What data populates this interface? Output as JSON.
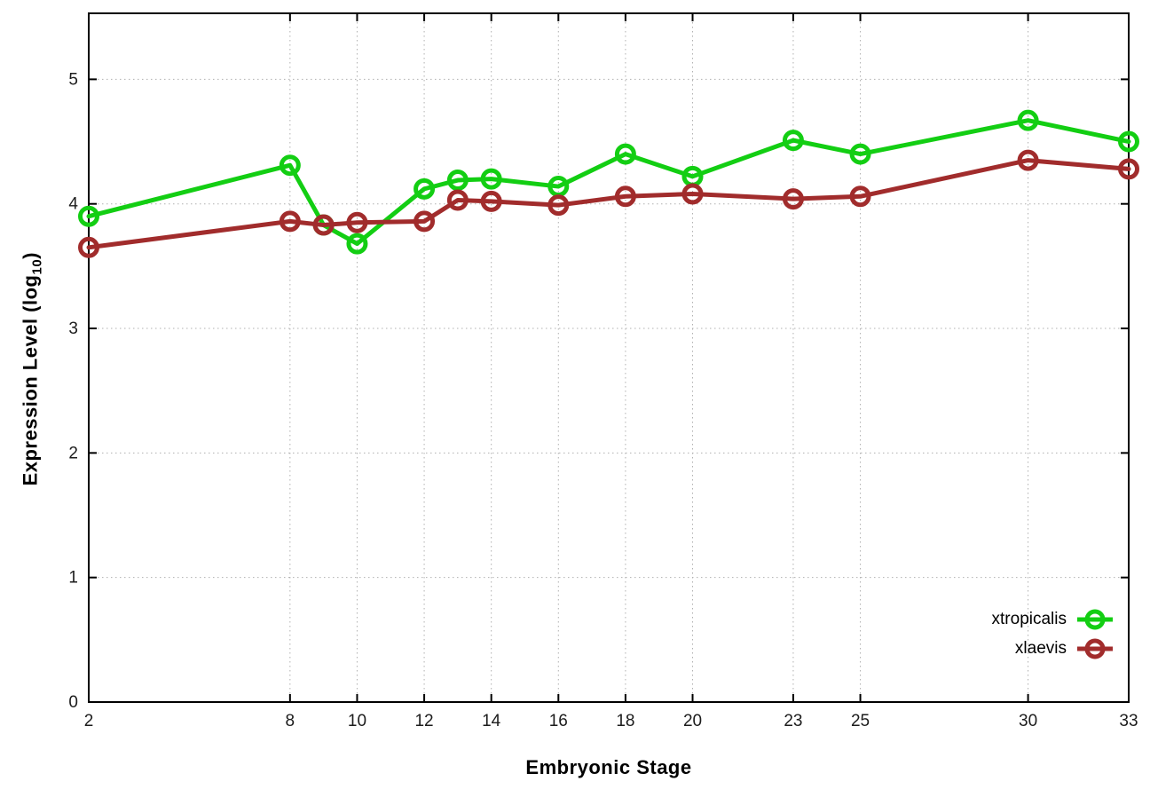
{
  "chart_data": {
    "type": "line",
    "title": "",
    "xlabel": "Embryonic Stage",
    "ylabel": "Expression Level (log10)",
    "ylabel_parts": {
      "main": "Expression Level (log",
      "sub": "10",
      "end": ")"
    },
    "x": [
      2,
      8,
      9,
      10,
      12,
      13,
      14,
      16,
      18,
      20,
      23,
      25,
      30,
      33
    ],
    "x_tick_labels": [
      "2",
      "8",
      "10",
      "12",
      "14",
      "16",
      "18",
      "20",
      "23",
      "25",
      "30",
      "33"
    ],
    "x_tick_values": [
      2,
      8,
      10,
      12,
      14,
      16,
      18,
      20,
      23,
      25,
      30,
      33
    ],
    "y_tick_labels": [
      "0",
      "1",
      "2",
      "3",
      "4",
      "5"
    ],
    "y_tick_values": [
      0,
      1,
      2,
      3,
      4,
      5
    ],
    "xlim": [
      2,
      33
    ],
    "ylim": [
      0,
      5.53
    ],
    "grid": true,
    "legend_position": "inside-bottom-right",
    "marker": "open-circle",
    "series": [
      {
        "name": "xtropicalis",
        "color": "#13ce13",
        "values": [
          3.9,
          4.31,
          3.83,
          3.68,
          4.12,
          4.19,
          4.2,
          4.14,
          4.4,
          4.22,
          4.51,
          4.4,
          4.67,
          4.5
        ]
      },
      {
        "name": "xlaevis",
        "color": "#a12c2c",
        "values": [
          3.65,
          3.86,
          3.83,
          3.85,
          3.86,
          4.03,
          4.02,
          3.99,
          4.06,
          4.08,
          4.04,
          4.06,
          4.35,
          4.28
        ]
      }
    ],
    "colors": {
      "border": "#000000",
      "grid": "#b0b0b0",
      "tick_text": "#1c1c1c",
      "background": "#ffffff"
    }
  }
}
